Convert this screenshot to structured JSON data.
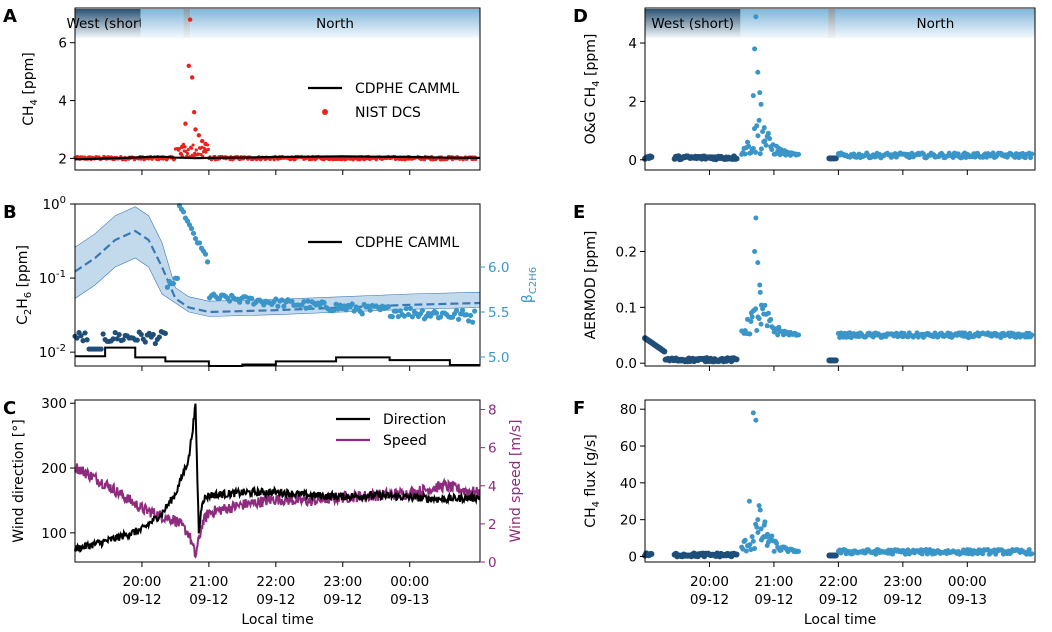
{
  "x_axis": {
    "label": "Local time",
    "tick_labels": [
      "20:00\n09-12",
      "21:00\n09-12",
      "22:00\n09-12",
      "23:00\n09-12",
      "00:00\n09-13"
    ],
    "tick_hours": [
      20,
      21,
      22,
      23,
      24
    ],
    "xlim_hours": [
      19.0,
      25.05
    ]
  },
  "banner": {
    "segments": [
      {
        "label": "West (short)",
        "start": 19.0,
        "end": 19.98,
        "style": "dark"
      },
      {
        "label": "",
        "start": 19.98,
        "end": 20.62,
        "style": "light"
      },
      {
        "label": "",
        "start": 20.62,
        "end": 20.72,
        "style": "gray"
      },
      {
        "label": "North",
        "start": 20.72,
        "end": 25.05,
        "style": "light"
      }
    ],
    "segments_right": [
      {
        "label": "West (short)",
        "start": 19.0,
        "end": 20.48,
        "style": "dark"
      },
      {
        "label": "",
        "start": 20.48,
        "end": 21.84,
        "style": "light"
      },
      {
        "label": "",
        "start": 21.84,
        "end": 21.96,
        "style": "gray"
      },
      {
        "label": "North",
        "start": 21.96,
        "end": 25.05,
        "style": "light"
      }
    ]
  },
  "colors": {
    "black": "#000000",
    "red": "#e8231e",
    "blue": "#3a95c8",
    "dark_blue": "#1f4e79",
    "purple": "#8e2b7e",
    "band": "#b8d3ea",
    "dashed": "#3a78b5"
  },
  "chart_data": [
    {
      "panel": "A",
      "type": "scatter",
      "ylabel": "CH4 [ppm]",
      "ylim": [
        1.6,
        7.2
      ],
      "yticks": [
        2,
        4,
        6
      ],
      "legend": [
        "CDPHE CAMML",
        "NIST DCS"
      ],
      "series": [
        {
          "name": "CDPHE CAMML",
          "kind": "line",
          "x": [
            19.0,
            19.5,
            20.0,
            20.3,
            20.5,
            20.8,
            21.0,
            21.5,
            22.0,
            22.5,
            23.0,
            23.5,
            24.0,
            24.5,
            25.05
          ],
          "y": [
            1.97,
            2.0,
            2.04,
            2.06,
            2.03,
            2.01,
            2.02,
            2.03,
            2.05,
            2.06,
            2.07,
            2.06,
            2.05,
            2.03,
            2.02
          ]
        },
        {
          "name": "NIST DCS",
          "kind": "scatter",
          "peak_x": [
            20.6,
            20.65,
            20.7,
            20.72,
            20.75,
            20.78,
            20.8,
            20.85,
            20.9,
            20.95
          ],
          "peak_y": [
            2.4,
            3.2,
            5.2,
            6.8,
            4.8,
            3.6,
            3.0,
            2.8,
            2.6,
            2.5
          ],
          "baseline": 2.05
        }
      ]
    },
    {
      "panel": "B",
      "type": "scatter",
      "ylabel": "C2H6 [ppm]",
      "yscale": "log",
      "ylim": [
        0.0065,
        1.0
      ],
      "ytick_labels": [
        "10^-2",
        "10^-1",
        "10^0"
      ],
      "y2label": "β_C2H6",
      "y2lim": [
        4.9,
        6.7
      ],
      "y2ticks": [
        5.0,
        5.5,
        6.0
      ],
      "legend": [
        "CDPHE CAMML"
      ],
      "series": [
        {
          "name": "CDPHE CAMML",
          "kind": "step",
          "x": [
            19.0,
            19.45,
            19.9,
            20.35,
            21.0,
            21.5,
            22.0,
            22.9,
            23.7,
            24.6,
            25.05
          ],
          "y": [
            0.0088,
            0.0115,
            0.0085,
            0.0075,
            0.0065,
            0.0068,
            0.0075,
            0.0085,
            0.0078,
            0.0067,
            0.0067
          ]
        },
        {
          "name": "beta mean",
          "kind": "dashed",
          "x": [
            19.0,
            19.3,
            19.6,
            19.9,
            20.1,
            20.3,
            20.5,
            20.7,
            21.0,
            22.0,
            23.0,
            24.0,
            25.05
          ],
          "y": [
            5.95,
            6.1,
            6.3,
            6.4,
            6.3,
            6.0,
            5.65,
            5.55,
            5.5,
            5.52,
            5.55,
            5.58,
            5.6
          ]
        }
      ]
    },
    {
      "panel": "C",
      "type": "line",
      "ylabel": "Wind direction [°]",
      "ylim": [
        55,
        305
      ],
      "yticks": [
        100,
        200,
        300
      ],
      "y2label": "Wind speed [m/s]",
      "y2lim": [
        0,
        8.5
      ],
      "y2ticks": [
        0,
        2,
        4,
        6,
        8
      ],
      "legend": [
        "Direction",
        "Speed"
      ],
      "series": [
        {
          "name": "Direction",
          "x": [
            19.0,
            19.5,
            20.0,
            20.3,
            20.5,
            20.7,
            20.8,
            20.85,
            20.9,
            21.0,
            21.5,
            22.0,
            22.5,
            23.0,
            23.5,
            24.0,
            24.5,
            25.05
          ],
          "y": [
            75,
            88,
            105,
            130,
            160,
            215,
            295,
            100,
            150,
            158,
            162,
            163,
            158,
            156,
            158,
            155,
            152,
            155
          ]
        },
        {
          "name": "Speed",
          "x": [
            19.0,
            19.5,
            20.0,
            20.3,
            20.5,
            20.7,
            20.8,
            20.9,
            21.0,
            21.5,
            22.0,
            22.5,
            23.0,
            23.5,
            24.0,
            24.5,
            25.05
          ],
          "y": [
            5.0,
            4.0,
            2.8,
            2.4,
            2.2,
            1.5,
            0.3,
            2.0,
            2.6,
            3.0,
            3.3,
            3.2,
            3.4,
            3.5,
            3.6,
            4.0,
            3.6
          ]
        }
      ]
    },
    {
      "panel": "D",
      "type": "scatter",
      "ylabel": "O&G CH4 [ppm]",
      "ylim": [
        -0.35,
        5.2
      ],
      "yticks": [
        0,
        2,
        4
      ],
      "series": [
        {
          "name": "O&G CH4",
          "baseline_west": 0.05,
          "baseline_north": 0.15,
          "peak_x": [
            20.68,
            20.7,
            20.72,
            20.75,
            20.78,
            20.8,
            20.85,
            20.9
          ],
          "peak_y": [
            2.2,
            3.8,
            4.9,
            3.0,
            2.3,
            1.9,
            1.1,
            0.8
          ]
        }
      ]
    },
    {
      "panel": "E",
      "type": "scatter",
      "ylabel": "AERMOD [ppm]",
      "ylim": [
        -0.005,
        0.285
      ],
      "yticks": [
        0.0,
        0.1,
        0.2
      ],
      "series": [
        {
          "name": "AERMOD",
          "baseline_west": 0.005,
          "baseline_north": 0.05,
          "peak_x": [
            20.65,
            20.7,
            20.72,
            20.75,
            20.78,
            20.8
          ],
          "peak_y": [
            0.09,
            0.2,
            0.26,
            0.18,
            0.14,
            0.07
          ]
        }
      ]
    },
    {
      "panel": "F",
      "type": "scatter",
      "ylabel": "CH4 flux [g/s]",
      "ylim": [
        -3,
        85
      ],
      "yticks": [
        0,
        20,
        40,
        60,
        80
      ],
      "series": [
        {
          "name": "CH4 flux",
          "baseline_west": 0.5,
          "baseline_north": 2.5,
          "peak_x": [
            20.62,
            20.68,
            20.72,
            20.75,
            20.8,
            20.85,
            20.9
          ],
          "peak_y": [
            30,
            78,
            74,
            20,
            15,
            17,
            12
          ]
        }
      ]
    }
  ],
  "panels": {
    "A": {
      "letter": "A",
      "ylabel_main": "CH",
      "ylabel_sub": "4",
      "ylabel_tail": " [ppm]"
    },
    "B": {
      "letter": "B",
      "ylabel_main": "C",
      "ylabel_sub": "2",
      "ylabel_mid": "H",
      "ylabel_sub2": "6",
      "ylabel_tail": " [ppm]",
      "y2label_main": "β",
      "y2label_sub": "C2H6"
    },
    "C": {
      "letter": "C",
      "ylabel": "Wind direction [°]",
      "y2label": "Wind speed [m/s]"
    },
    "D": {
      "letter": "D",
      "ylabel_main": "O&G CH",
      "ylabel_sub": "4",
      "ylabel_tail": " [ppm]"
    },
    "E": {
      "letter": "E",
      "ylabel": "AERMOD [ppm]"
    },
    "F": {
      "letter": "F",
      "ylabel_main": "CH",
      "ylabel_sub": "4",
      "ylabel_tail": " flux [g/s]"
    }
  },
  "legends": {
    "A": [
      "CDPHE CAMML",
      "NIST DCS"
    ],
    "B": [
      "CDPHE CAMML"
    ],
    "C": [
      "Direction",
      "Speed"
    ]
  }
}
